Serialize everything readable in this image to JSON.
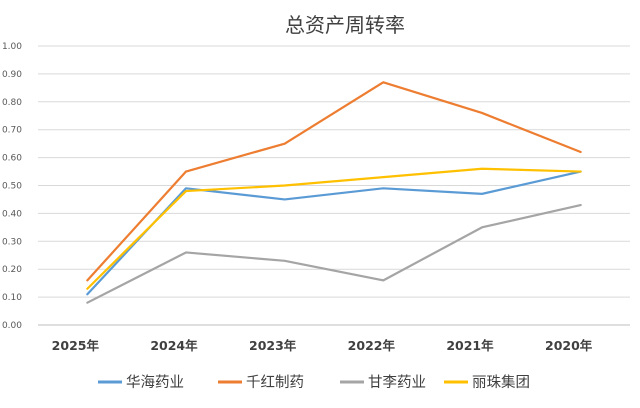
{
  "chart_data": {
    "type": "line",
    "title": "总资产周转率",
    "categories": [
      "2025年",
      "2024年",
      "2023年",
      "2022年",
      "2021年",
      "2020年"
    ],
    "ylim": [
      0,
      1
    ],
    "yticks": [
      "0.00",
      "0.10",
      "0.20",
      "0.30",
      "0.40",
      "0.50",
      "0.60",
      "0.70",
      "0.80",
      "0.90",
      "1.00"
    ],
    "grid": true,
    "legend_position": "bottom",
    "series": [
      {
        "name": "华海药业",
        "color": "#5b9bd5",
        "values": [
          0.11,
          0.49,
          0.45,
          0.49,
          0.47,
          0.55
        ]
      },
      {
        "name": "千红制药",
        "color": "#ed7d31",
        "values": [
          0.16,
          0.55,
          0.65,
          0.87,
          0.76,
          0.62
        ]
      },
      {
        "name": "甘李药业",
        "color": "#a5a5a5",
        "values": [
          0.08,
          0.26,
          0.23,
          0.16,
          0.35,
          0.43
        ]
      },
      {
        "name": "丽珠集团",
        "color": "#ffc000",
        "values": [
          0.13,
          0.48,
          0.5,
          0.53,
          0.56,
          0.55
        ]
      }
    ]
  }
}
